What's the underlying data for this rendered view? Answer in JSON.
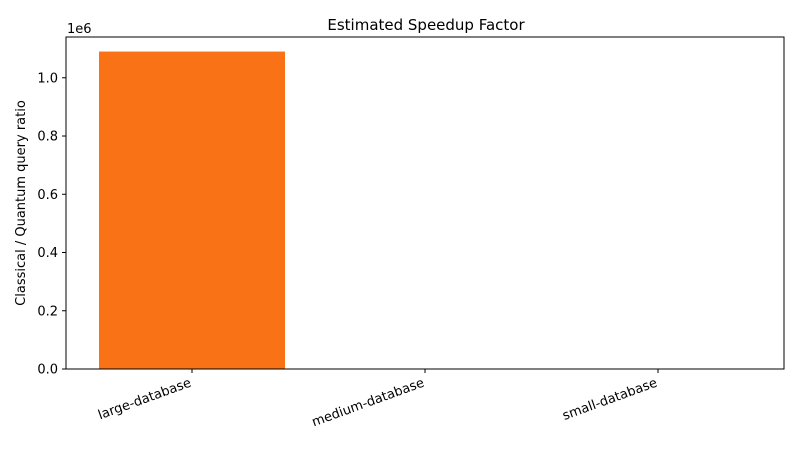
{
  "chart_data": {
    "type": "bar",
    "title": "Estimated Speedup Factor",
    "xlabel": "",
    "ylabel": "Classical / Quantum query ratio",
    "categories": [
      "large-database",
      "medium-database",
      "small-database"
    ],
    "values": [
      1090000,
      350,
      60
    ],
    "ylim": [
      0,
      1140000
    ],
    "yticks": [
      0,
      200000,
      400000,
      600000,
      800000,
      1000000
    ],
    "ytick_labels": [
      "0.0",
      "0.2",
      "0.4",
      "0.6",
      "0.8",
      "1.0"
    ],
    "offset_text": "1e6",
    "bar_color": "#f97316",
    "grid": false,
    "legend": "none"
  }
}
